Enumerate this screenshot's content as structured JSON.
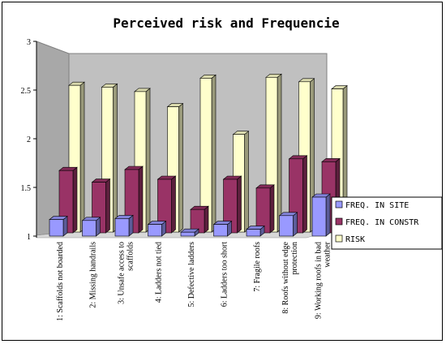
{
  "chart_data": {
    "type": "bar",
    "title": "Perceived risk and Frequencie",
    "xlabel": "",
    "ylabel": "",
    "ylim": [
      1,
      3
    ],
    "yticks": [
      "1",
      "1.5",
      "2",
      "2.5",
      "3"
    ],
    "categories": [
      "1: Scaffolds not boarded",
      "2: Missing handrails",
      "3: Unsafe access to scaffolds",
      "4: Ladders not tied",
      "5: Defective ladders",
      "6: Ladders too short",
      "7: Fragile roofs",
      "8: Roofs without edge protection",
      "9: Working roofs in bad weather"
    ],
    "category_lines": [
      [
        "1: Scaffolds not boarded"
      ],
      [
        "2: Missing handrails"
      ],
      [
        "3: Unsafe access to",
        "scaffolds"
      ],
      [
        "4: Ladders not tied"
      ],
      [
        "5: Defective ladders"
      ],
      [
        "6: Ladders too short"
      ],
      [
        "7: Fragile roofs"
      ],
      [
        "8: Roofs without edge",
        "protection"
      ],
      [
        "9: Working roofs in bad",
        "weather"
      ]
    ],
    "series": [
      {
        "name": "FREQ. IN SITE",
        "color": "#9999ff",
        "values": [
          1.17,
          1.16,
          1.18,
          1.12,
          1.04,
          1.12,
          1.07,
          1.21,
          1.4
        ]
      },
      {
        "name": "FREQ. IN CONSTR",
        "color": "#993366",
        "values": [
          1.64,
          1.52,
          1.65,
          1.55,
          1.24,
          1.55,
          1.46,
          1.76,
          1.73
        ]
      },
      {
        "name": "RISK",
        "color": "#ffffcc",
        "values": [
          2.68,
          2.66,
          2.61,
          2.44,
          2.76,
          2.13,
          2.77,
          2.72,
          2.64
        ]
      }
    ],
    "grid": false,
    "legend": "right"
  }
}
